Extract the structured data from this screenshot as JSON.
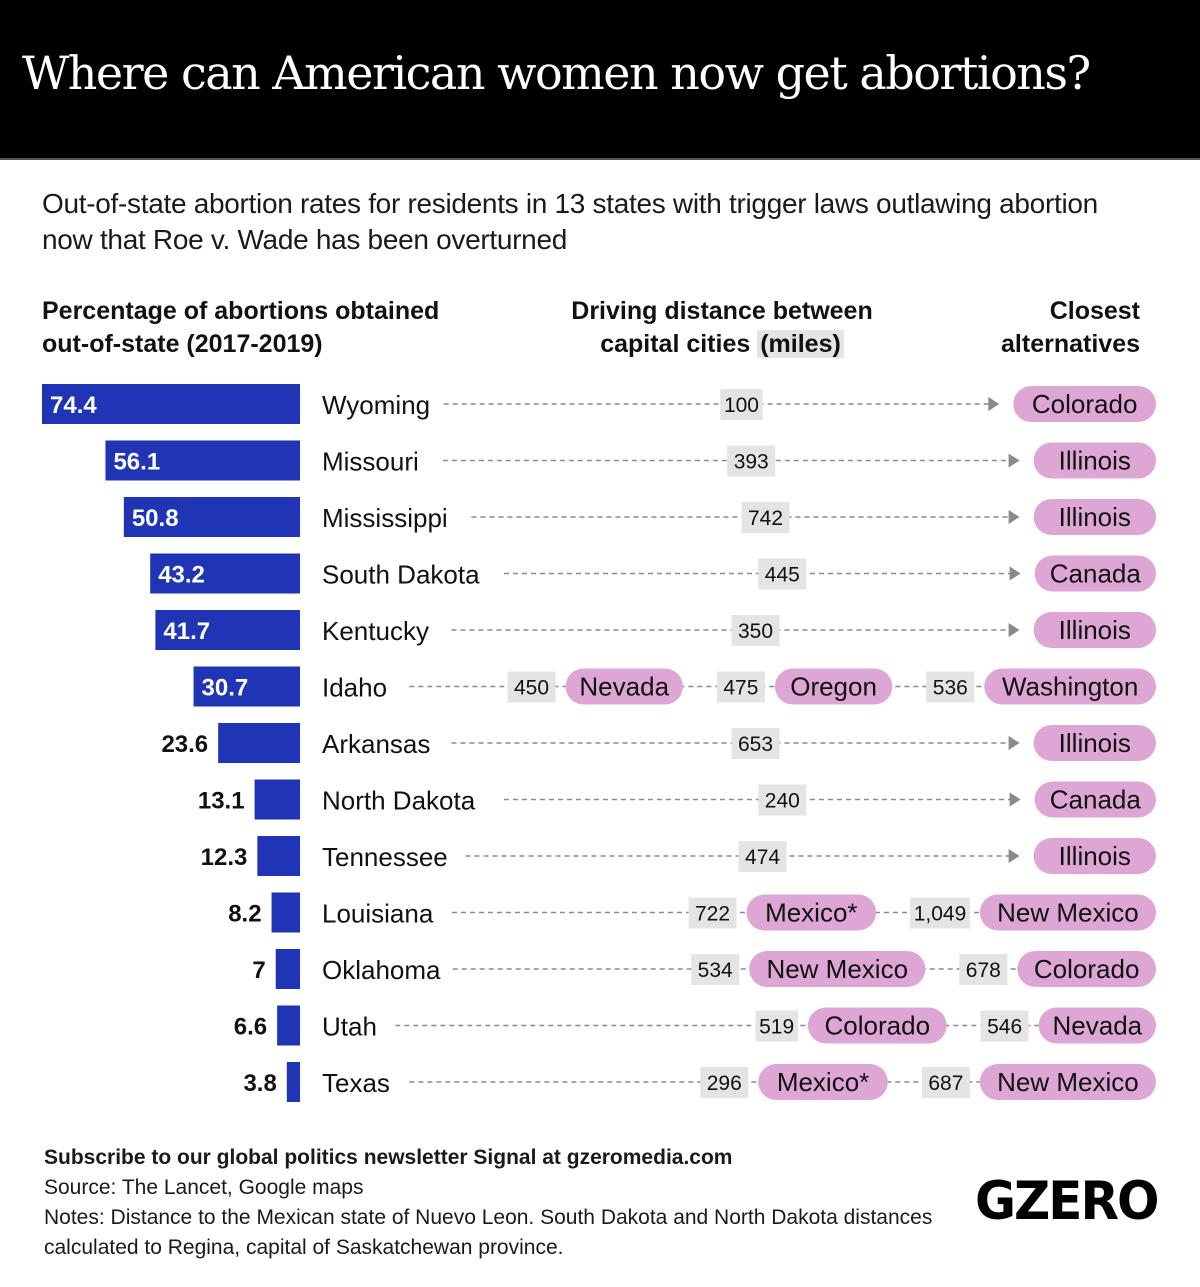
{
  "header": {
    "title": "Where can American women now get abortions?",
    "subtitle": "Out-of-state abortion rates for residents in 13 states with trigger laws outlawing abortion now that Roe v. Wade has been overturned"
  },
  "columns": {
    "left_line1": "Percentage of abortions obtained",
    "left_line2": "out-of-state (2017-2019)",
    "mid_line1": "Driving distance between",
    "mid_line2a": "capital cities ",
    "mid_line2b": "(miles)",
    "right_line1": "Closest",
    "right_line2": "alternatives"
  },
  "colors": {
    "bar": "#1f35b5",
    "destination_pill": "#dda6d4",
    "distance_box": "#e4e4e4",
    "connector": "#8a8a8a",
    "title_bg": "#000000"
  },
  "chart_data": {
    "type": "bar",
    "orientation": "horizontal",
    "title": "Percentage of abortions obtained out-of-state (2017-2019)",
    "xlabel": "",
    "ylabel": "",
    "xlim": [
      0,
      74.4
    ],
    "categories": [
      "Wyoming",
      "Missouri",
      "Mississippi",
      "South Dakota",
      "Kentucky",
      "Idaho",
      "Arkansas",
      "North Dakota",
      "Tennessee",
      "Louisiana",
      "Oklahoma",
      "Utah",
      "Texas"
    ],
    "values": [
      74.4,
      56.1,
      50.8,
      43.2,
      41.7,
      30.7,
      23.6,
      13.1,
      12.3,
      8.2,
      7,
      6.6,
      3.8
    ],
    "value_labels": [
      "74.4",
      "56.1",
      "50.8",
      "43.2",
      "41.7",
      "30.7",
      "23.6",
      "13.1",
      "12.3",
      "8.2",
      "7",
      "6.6",
      "3.8"
    ],
    "rows": [
      {
        "state": "Wyoming",
        "value": 74.4,
        "label": "74.4",
        "routes": [
          {
            "miles": "100",
            "dest": "Colorado"
          }
        ]
      },
      {
        "state": "Missouri",
        "value": 56.1,
        "label": "56.1",
        "routes": [
          {
            "miles": "393",
            "dest": "Illinois"
          }
        ]
      },
      {
        "state": "Mississippi",
        "value": 50.8,
        "label": "50.8",
        "routes": [
          {
            "miles": "742",
            "dest": "Illinois"
          }
        ]
      },
      {
        "state": "South Dakota",
        "value": 43.2,
        "label": "43.2",
        "routes": [
          {
            "miles": "445",
            "dest": "Canada"
          }
        ]
      },
      {
        "state": "Kentucky",
        "value": 41.7,
        "label": "41.7",
        "routes": [
          {
            "miles": "350",
            "dest": "Illinois"
          }
        ]
      },
      {
        "state": "Idaho",
        "value": 30.7,
        "label": "30.7",
        "routes": [
          {
            "miles": "450",
            "dest": "Nevada"
          },
          {
            "miles": "475",
            "dest": "Oregon"
          },
          {
            "miles": "536",
            "dest": "Washington"
          }
        ]
      },
      {
        "state": "Arkansas",
        "value": 23.6,
        "label": "23.6",
        "routes": [
          {
            "miles": "653",
            "dest": "Illinois"
          }
        ]
      },
      {
        "state": "North Dakota",
        "value": 13.1,
        "label": "13.1",
        "routes": [
          {
            "miles": "240",
            "dest": "Canada"
          }
        ]
      },
      {
        "state": "Tennessee",
        "value": 12.3,
        "label": "12.3",
        "routes": [
          {
            "miles": "474",
            "dest": "Illinois"
          }
        ]
      },
      {
        "state": "Louisiana",
        "value": 8.2,
        "label": "8.2",
        "routes": [
          {
            "miles": "722",
            "dest": "Mexico*"
          },
          {
            "miles": "1,049",
            "dest": "New Mexico"
          }
        ]
      },
      {
        "state": "Oklahoma",
        "value": 7,
        "label": "7",
        "routes": [
          {
            "miles": "534",
            "dest": "New Mexico"
          },
          {
            "miles": "678",
            "dest": "Colorado"
          }
        ]
      },
      {
        "state": "Utah",
        "value": 6.6,
        "label": "6.6",
        "routes": [
          {
            "miles": "519",
            "dest": "Colorado"
          },
          {
            "miles": "546",
            "dest": "Nevada"
          }
        ]
      },
      {
        "state": "Texas",
        "value": 3.8,
        "label": "3.8",
        "routes": [
          {
            "miles": "296",
            "dest": "Mexico*"
          },
          {
            "miles": "687",
            "dest": "New Mexico"
          }
        ]
      }
    ]
  },
  "footer": {
    "subscribe": "Subscribe to our global politics newsletter Signal at gzeromedia.com",
    "source": "Source: The Lancet, Google maps",
    "notes": "Notes: Distance to the Mexican state of Nuevo Leon. South Dakota and North Dakota distances calculated to Regina, capital of Saskatchewan province.",
    "logo": "GZERO"
  }
}
